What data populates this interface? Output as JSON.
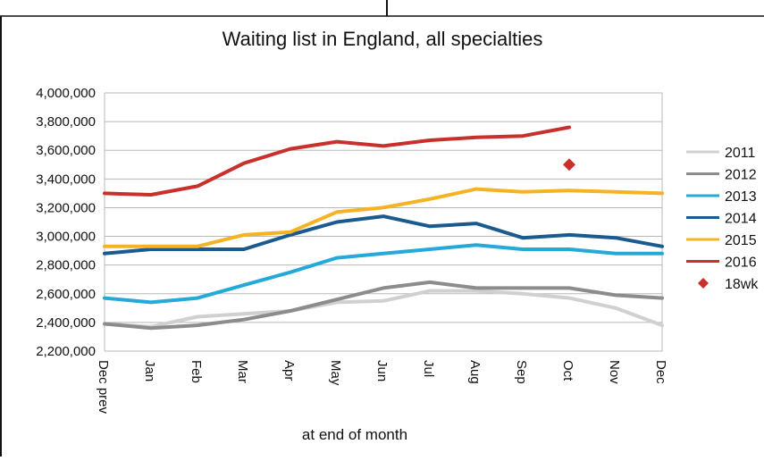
{
  "chart_data": {
    "type": "line",
    "title": "Waiting list in England, all specialties",
    "xlabel": "at end of month",
    "ylabel": "",
    "categories": [
      "Dec prev",
      "Jan",
      "Feb",
      "Mar",
      "Apr",
      "May",
      "Jun",
      "Jul",
      "Aug",
      "Sep",
      "Oct",
      "Nov",
      "Dec"
    ],
    "ylim": [
      2200000,
      4000000
    ],
    "yticks": [
      "2,200,000",
      "2,400,000",
      "2,600,000",
      "2,800,000",
      "3,000,000",
      "3,200,000",
      "3,400,000",
      "3,600,000",
      "3,800,000",
      "4,000,000"
    ],
    "grid": true,
    "legend_position": "right",
    "series": [
      {
        "name": "2011",
        "color": "#d0d0d0",
        "values": [
          2390000,
          2370000,
          2440000,
          2460000,
          2480000,
          2540000,
          2550000,
          2620000,
          2620000,
          2600000,
          2570000,
          2500000,
          2380000
        ]
      },
      {
        "name": "2012",
        "color": "#8c8c8c",
        "values": [
          2390000,
          2360000,
          2380000,
          2420000,
          2480000,
          2560000,
          2640000,
          2680000,
          2640000,
          2640000,
          2640000,
          2590000,
          2570000
        ]
      },
      {
        "name": "2013",
        "color": "#25a9d9",
        "values": [
          2570000,
          2540000,
          2570000,
          2660000,
          2750000,
          2850000,
          2880000,
          2910000,
          2940000,
          2910000,
          2910000,
          2880000,
          2880000
        ]
      },
      {
        "name": "2014",
        "color": "#1a5a8f",
        "values": [
          2880000,
          2910000,
          2910000,
          2910000,
          3010000,
          3100000,
          3140000,
          3070000,
          3090000,
          2990000,
          3010000,
          2990000,
          2930000
        ]
      },
      {
        "name": "2015",
        "color": "#f5b323",
        "values": [
          2930000,
          2930000,
          2930000,
          3010000,
          3030000,
          3170000,
          3200000,
          3260000,
          3330000,
          3310000,
          3320000,
          3310000,
          3300000
        ]
      },
      {
        "name": "2016",
        "color": "#c9302c",
        "values": [
          3300000,
          3290000,
          3350000,
          3510000,
          3610000,
          3660000,
          3630000,
          3670000,
          3690000,
          3700000,
          3760000,
          null,
          null
        ]
      }
    ],
    "markers": [
      {
        "name": "18wk",
        "color": "#c9302c",
        "shape": "diamond",
        "category": "Oct",
        "value": 3500000
      }
    ]
  }
}
